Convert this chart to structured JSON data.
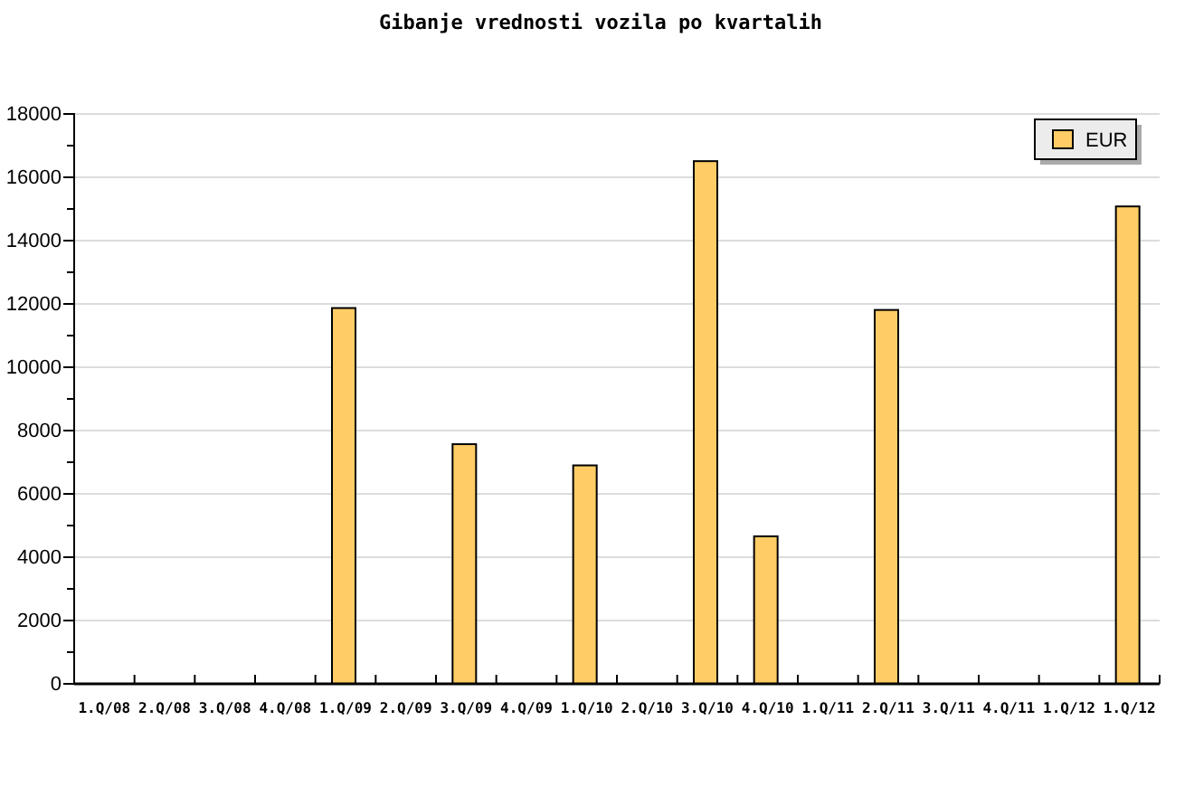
{
  "chart_data": {
    "type": "bar",
    "title": "Gibanje vrednosti vozila po kvartalih",
    "categories": [
      "1.Q/08",
      "2.Q/08",
      "3.Q/08",
      "4.Q/08",
      "1.Q/09",
      "2.Q/09",
      "3.Q/09",
      "4.Q/09",
      "1.Q/10",
      "2.Q/10",
      "3.Q/10",
      "4.Q/10",
      "1.Q/11",
      "2.Q/11",
      "3.Q/11",
      "4.Q/11",
      "1.Q/12",
      "1.Q/12"
    ],
    "series": [
      {
        "name": "EUR",
        "color": "#ffcc66",
        "values": [
          null,
          null,
          null,
          null,
          11870,
          null,
          7570,
          null,
          6900,
          null,
          16510,
          4660,
          null,
          11810,
          null,
          null,
          null,
          15080
        ]
      }
    ],
    "ylim": [
      0,
      18000
    ],
    "yticks": [
      0,
      {
        "value": 1000,
        "label": null
      },
      2000,
      {
        "value": 3000,
        "label": null
      },
      4000,
      {
        "value": 5000,
        "label": null
      },
      6000,
      {
        "value": 7000,
        "label": null
      },
      8000,
      {
        "value": 9000,
        "label": null
      },
      10000,
      {
        "value": 11000,
        "label": null
      },
      12000,
      {
        "value": 13000,
        "label": null
      },
      14000,
      {
        "value": 15000,
        "label": null
      },
      16000,
      {
        "value": 17000,
        "label": null
      },
      18000
    ],
    "grid": "y",
    "legend": "top right"
  }
}
